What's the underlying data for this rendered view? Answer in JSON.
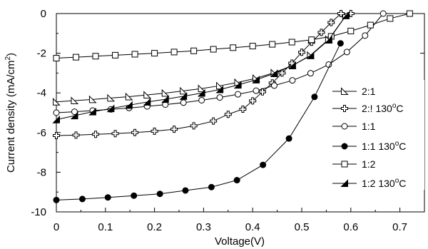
{
  "chart_data": {
    "type": "line",
    "xlabel": "Voltage(V)",
    "ylabel_parts": [
      "Current  density (mA/cm",
      "2",
      ")"
    ],
    "xlim": [
      0,
      0.75
    ],
    "ylim": [
      -10,
      0
    ],
    "xticks": [
      0,
      0.1,
      0.2,
      0.3,
      0.4,
      0.5,
      0.6,
      0.7
    ],
    "xtick_labels": [
      "0",
      "0.1",
      "0.2",
      "0.3",
      "0.4",
      "0.5",
      "0.6",
      "0.7"
    ],
    "yticks": [
      0,
      -2,
      -4,
      -6,
      -8,
      -10
    ],
    "ytick_labels": [
      "0",
      "-2",
      "-4",
      "-6",
      "-8",
      "-10"
    ],
    "series": [
      {
        "name": "2:1",
        "legend_parts": [
          "2:1"
        ],
        "marker": "triangle-right-open",
        "x": [
          0,
          0.037,
          0.074,
          0.111,
          0.148,
          0.185,
          0.222,
          0.259,
          0.296,
          0.333,
          0.37,
          0.407,
          0.444,
          0.481,
          0.518,
          0.555,
          0.59
        ],
        "y": [
          -4.45,
          -4.39,
          -4.33,
          -4.26,
          -4.19,
          -4.1,
          -4.01,
          -3.9,
          -3.78,
          -3.64,
          -3.47,
          -3.26,
          -2.98,
          -2.62,
          -2.1,
          -1.3,
          -0.1
        ]
      },
      {
        "name": "2:! 130°C",
        "legend_parts": [
          "2:!  130",
          "o",
          "C"
        ],
        "marker": "plus-open",
        "x": [
          0,
          0.04,
          0.08,
          0.12,
          0.16,
          0.2,
          0.24,
          0.28,
          0.32,
          0.35,
          0.38,
          0.4,
          0.42,
          0.44,
          0.46,
          0.48,
          0.5,
          0.52,
          0.54,
          0.56,
          0.58,
          0.6
        ],
        "y": [
          -6.15,
          -6.13,
          -6.09,
          -6.05,
          -6.0,
          -5.93,
          -5.83,
          -5.66,
          -5.42,
          -5.08,
          -4.82,
          -4.4,
          -3.95,
          -3.5,
          -3.0,
          -2.5,
          -1.95,
          -1.45,
          -0.95,
          -0.45,
          0.0,
          0.0
        ]
      },
      {
        "name": "1:1",
        "legend_parts": [
          "1:1"
        ],
        "marker": "circle-open",
        "x": [
          0,
          0.037,
          0.074,
          0.111,
          0.148,
          0.185,
          0.222,
          0.259,
          0.296,
          0.333,
          0.37,
          0.407,
          0.444,
          0.481,
          0.518,
          0.555,
          0.592,
          0.629,
          0.666
        ],
        "y": [
          -5.0,
          -4.95,
          -4.89,
          -4.83,
          -4.76,
          -4.68,
          -4.59,
          -4.49,
          -4.37,
          -4.23,
          -4.07,
          -3.89,
          -3.63,
          -3.37,
          -3.01,
          -2.57,
          -1.94,
          -1.11,
          0.0
        ]
      },
      {
        "name": "1:1 130°C",
        "legend_parts": [
          "1:1  130",
          "o",
          "C"
        ],
        "marker": "circle-filled",
        "x": [
          0,
          0.053,
          0.105,
          0.158,
          0.211,
          0.263,
          0.316,
          0.368,
          0.421,
          0.474,
          0.526,
          0.579
        ],
        "y": [
          -9.4,
          -9.35,
          -9.27,
          -9.18,
          -9.09,
          -8.92,
          -8.75,
          -8.4,
          -7.63,
          -6.3,
          -4.2,
          -1.5
        ]
      },
      {
        "name": "1:2",
        "legend_parts": [
          "1:2"
        ],
        "marker": "square-open",
        "x": [
          0,
          0.04,
          0.08,
          0.12,
          0.16,
          0.2,
          0.24,
          0.28,
          0.32,
          0.36,
          0.4,
          0.44,
          0.48,
          0.52,
          0.56,
          0.6,
          0.64,
          0.68,
          0.72
        ],
        "y": [
          -2.25,
          -2.2,
          -2.15,
          -2.1,
          -2.05,
          -2.0,
          -1.94,
          -1.88,
          -1.8,
          -1.72,
          -1.64,
          -1.55,
          -1.44,
          -1.32,
          -1.15,
          -0.88,
          -0.58,
          -0.25,
          0.0
        ]
      },
      {
        "name": "1:2 130°C",
        "legend_parts": [
          "1:2  130",
          "o",
          "C"
        ],
        "marker": "triangle-filled",
        "x": [
          0,
          0.037,
          0.074,
          0.111,
          0.148,
          0.185,
          0.222,
          0.259,
          0.296,
          0.333,
          0.37,
          0.407,
          0.444,
          0.481,
          0.518,
          0.555,
          0.59
        ],
        "y": [
          -5.35,
          -5.15,
          -4.95,
          -4.79,
          -4.62,
          -4.46,
          -4.32,
          -4.17,
          -4.01,
          -3.83,
          -3.6,
          -3.34,
          -3.02,
          -2.62,
          -2.12,
          -1.33,
          -0.1
        ]
      }
    ]
  }
}
